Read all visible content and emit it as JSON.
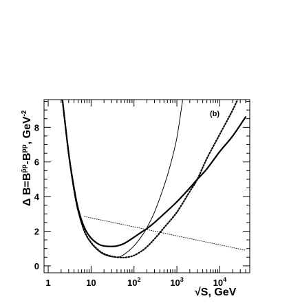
{
  "chart_data": {
    "type": "line",
    "panel_label": "(b)",
    "xlabel": "√S, GeV",
    "ylabel": "Δ B=B^{p̄p}-B^{pp}, GeV^{-2}",
    "x_scale": "log",
    "xlim": [
      0.8,
      50000
    ],
    "ylim": [
      -0.4,
      9.6
    ],
    "grid": false,
    "legend": "none",
    "x_tick_labels": [
      {
        "value": 1,
        "base": "1",
        "exp": ""
      },
      {
        "value": 10,
        "base": "10",
        "exp": ""
      },
      {
        "value": 100,
        "base": "10",
        "exp": "2"
      },
      {
        "value": 1000,
        "base": "10",
        "exp": "3"
      },
      {
        "value": 10000,
        "base": "10",
        "exp": "4"
      }
    ],
    "y_tick_labels": [
      0,
      2,
      4,
      6,
      8
    ],
    "series": [
      {
        "style": "thick-solid",
        "x": [
          2.1,
          3,
          4,
          5,
          7,
          10,
          15,
          20,
          30,
          40,
          60,
          100,
          150,
          200,
          300,
          500,
          1000,
          2000,
          3000,
          5000,
          10000,
          20000,
          40000
        ],
        "y": [
          9.8,
          6.5,
          4.5,
          3.3,
          2.2,
          1.6,
          1.25,
          1.15,
          1.12,
          1.15,
          1.3,
          1.65,
          1.95,
          2.15,
          2.5,
          3.0,
          3.7,
          4.5,
          5.0,
          5.6,
          6.6,
          7.5,
          8.6
        ]
      },
      {
        "style": "thin-solid",
        "x": [
          2.1,
          3,
          4,
          5,
          7,
          10,
          15,
          20,
          30,
          40,
          50,
          70,
          100,
          150,
          200,
          300,
          500,
          700,
          1000,
          1400
        ],
        "y": [
          9.8,
          6.4,
          4.3,
          3.1,
          1.95,
          1.3,
          0.85,
          0.65,
          0.52,
          0.5,
          0.55,
          0.8,
          1.15,
          1.7,
          2.2,
          3.1,
          4.6,
          5.8,
          7.4,
          9.8
        ]
      },
      {
        "style": "thick-dotted",
        "x": [
          2.1,
          3,
          4,
          5,
          7,
          10,
          15,
          20,
          30,
          50,
          70,
          100,
          150,
          200,
          300,
          500,
          1000,
          2000,
          3000,
          5000,
          10000,
          20000,
          28000
        ],
        "y": [
          9.8,
          6.5,
          4.4,
          3.2,
          2.0,
          1.35,
          0.9,
          0.7,
          0.55,
          0.48,
          0.5,
          0.6,
          0.85,
          1.1,
          1.55,
          2.2,
          3.1,
          4.3,
          5.0,
          6.2,
          7.6,
          9.0,
          9.8
        ]
      },
      {
        "style": "thin-dotted",
        "x": [
          7,
          40000
        ],
        "y": [
          2.85,
          0.9
        ]
      }
    ]
  }
}
